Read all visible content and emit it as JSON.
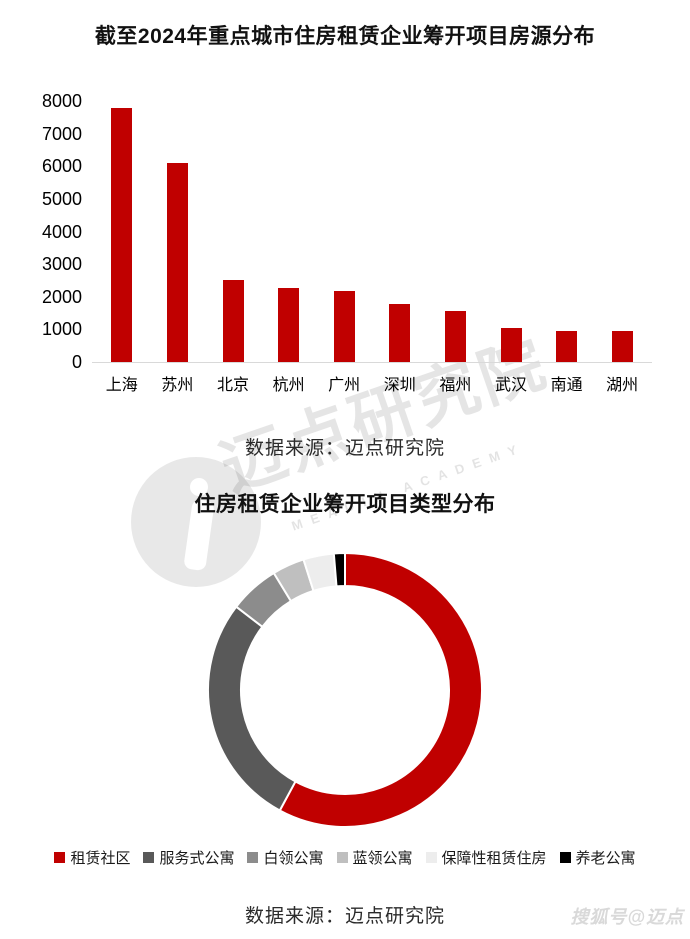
{
  "watermarks": {
    "center_text": "迈点研究院",
    "center_subtext": "MEADIN ACADEMY",
    "bottom_right": "搜狐号@迈点"
  },
  "colors": {
    "accent_red": "#c00000",
    "axis_line": "#d9d9d9",
    "watermark_gray": "rgba(0,0,0,0.10)"
  },
  "chart_data": [
    {
      "type": "bar",
      "title": "截至2024年重点城市住房租赁企业筹开项目房源分布",
      "categories": [
        "上海",
        "苏州",
        "北京",
        "杭州",
        "广州",
        "深圳",
        "福州",
        "武汉",
        "南通",
        "湖州"
      ],
      "values": [
        7800,
        6100,
        2500,
        2270,
        2170,
        1790,
        1560,
        1030,
        950,
        940
      ],
      "ylim": [
        0,
        8000
      ],
      "ytick_step": 1000,
      "bar_color": "#c00000",
      "grid": false,
      "source": "数据来源：迈点研究院"
    },
    {
      "type": "pie",
      "subtype": "donut",
      "title": "住房租赁企业筹开项目类型分布",
      "start_angle_deg": 0,
      "direction": "clockwise",
      "legend_position": "bottom",
      "segments": [
        {
          "label": "租赁社区",
          "percent": 57.9,
          "color": "#c00000"
        },
        {
          "label": "服务式公寓",
          "percent": 27.5,
          "color": "#595959"
        },
        {
          "label": "白领公寓",
          "percent": 5.9,
          "color": "#8c8c8c"
        },
        {
          "label": "蓝领公寓",
          "percent": 3.8,
          "color": "#bfbfbf"
        },
        {
          "label": "保障性租赁住房",
          "percent": 3.6,
          "color": "#ededed"
        },
        {
          "label": "养老公寓",
          "percent": 1.3,
          "color": "#000000"
        }
      ],
      "source": "数据来源：迈点研究院"
    }
  ]
}
